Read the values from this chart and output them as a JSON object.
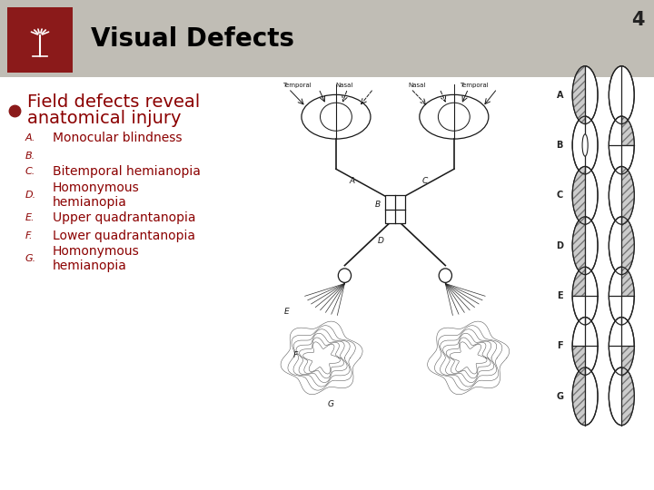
{
  "title": "Visual Defects",
  "slide_number": "4",
  "bg_color": "#d4d0c8",
  "header_bg": "#c0bdb5",
  "logo_bg": "#8b1a1a",
  "title_color": "#000000",
  "bullet_color": "#8b1a1a",
  "text_color": "#8b0000",
  "items": [
    {
      "label": "A.",
      "text": "Monocular blindness",
      "lines": 1
    },
    {
      "label": "B.",
      "text": "",
      "lines": 1
    },
    {
      "label": "C.",
      "text": "Bitemporal hemianopia",
      "lines": 1
    },
    {
      "label": "D.",
      "text": "Homonymous\nhemianopia",
      "lines": 2
    },
    {
      "label": "E.",
      "text": "Upper quadrantanopia",
      "lines": 1
    },
    {
      "label": "F.",
      "text": "Lower quadrantanopia",
      "lines": 1
    },
    {
      "label": "G.",
      "text": "Homonymous\nhemianopia",
      "lines": 2
    }
  ],
  "hatch_color": "#888888",
  "light_fill": "#cccccc",
  "hatch_fill": "#aaaaaa"
}
